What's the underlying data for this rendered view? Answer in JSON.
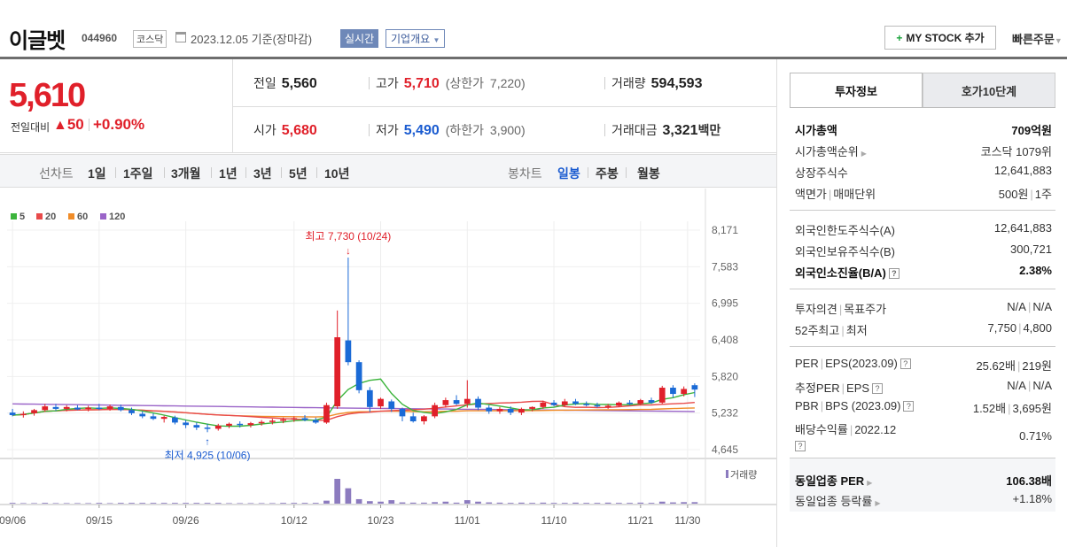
{
  "header": {
    "stock_name": "이글벳",
    "stock_code": "044960",
    "market": "코스닥",
    "date": "2023.12.05  기준(장마감)",
    "realtime_label": "실시간",
    "company_overview": "기업개요",
    "my_stock_label": "MY STOCK 추가",
    "quick_order_label": "빠른주문"
  },
  "quote": {
    "price": "5,610",
    "change_label": "전일대비",
    "change": "50",
    "change_pct": "+0.90%",
    "prev_label": "전일",
    "prev": "5,560",
    "high_label": "고가",
    "high": "5,710",
    "upper_label": "(상한가",
    "upper": "7,220)",
    "volume_label": "거래량",
    "volume": "594,593",
    "open_label": "시가",
    "open": "5,680",
    "low_label": "저가",
    "low": "5,490",
    "lower_label": "(하한가",
    "lower": "3,900)",
    "amount_label": "거래대금",
    "amount": "3,321",
    "amount_unit": "백만"
  },
  "period_bar": {
    "line_label": "선차트",
    "line_periods": [
      "1일",
      "1주일",
      "3개월",
      "1년",
      "3년",
      "5년",
      "10년"
    ],
    "candle_label": "봉차트",
    "candle_periods": [
      "일봉",
      "주봉",
      "월봉"
    ],
    "active_candle": "일봉"
  },
  "chart_data": {
    "type": "candlestick",
    "legend": [
      {
        "name": "5",
        "color": "#3cb43c"
      },
      {
        "name": "20",
        "color": "#e84a4a"
      },
      {
        "name": "60",
        "color": "#f08c28"
      },
      {
        "name": "120",
        "color": "#9a64c8"
      }
    ],
    "y_ticks": [
      "8,171",
      "7,583",
      "6,995",
      "6,408",
      "5,820",
      "5,232",
      "4,645"
    ],
    "ylim": [
      4645,
      8171
    ],
    "x_ticks": [
      "09/06",
      "09/15",
      "09/26",
      "10/12",
      "10/23",
      "11/01",
      "11/10",
      "11/21",
      "11/30"
    ],
    "max_annotation": "최고 7,730 (10/24)",
    "min_annotation": "최저 4,925 (10/06)",
    "volume_label": "거래량",
    "candles": [
      [
        5240,
        5300,
        5180,
        5200
      ],
      [
        5200,
        5260,
        5160,
        5220
      ],
      [
        5230,
        5300,
        5190,
        5280
      ],
      [
        5280,
        5380,
        5250,
        5340
      ],
      [
        5330,
        5380,
        5270,
        5300
      ],
      [
        5300,
        5360,
        5260,
        5330
      ],
      [
        5320,
        5360,
        5280,
        5290
      ],
      [
        5300,
        5350,
        5260,
        5320
      ],
      [
        5320,
        5380,
        5280,
        5300
      ],
      [
        5300,
        5370,
        5270,
        5340
      ],
      [
        5330,
        5370,
        5260,
        5280
      ],
      [
        5280,
        5320,
        5200,
        5230
      ],
      [
        5220,
        5260,
        5150,
        5180
      ],
      [
        5180,
        5230,
        5120,
        5140
      ],
      [
        5140,
        5190,
        5080,
        5170
      ],
      [
        5160,
        5190,
        5050,
        5080
      ],
      [
        5080,
        5120,
        4990,
        5040
      ],
      [
        5040,
        5080,
        4960,
        5000
      ],
      [
        5000,
        5060,
        4925,
        4980
      ],
      [
        4980,
        5060,
        4950,
        5030
      ],
      [
        5030,
        5080,
        4990,
        5060
      ],
      [
        5060,
        5100,
        5000,
        5040
      ],
      [
        5040,
        5090,
        5000,
        5070
      ],
      [
        5070,
        5120,
        5030,
        5090
      ],
      [
        5090,
        5140,
        5050,
        5110
      ],
      [
        5110,
        5160,
        5070,
        5130
      ],
      [
        5130,
        5180,
        5090,
        5150
      ],
      [
        5150,
        5200,
        5100,
        5120
      ],
      [
        5120,
        5160,
        5060,
        5080
      ],
      [
        5080,
        5400,
        5060,
        5360
      ],
      [
        5340,
        6880,
        5300,
        6450
      ],
      [
        6400,
        7730,
        6000,
        6050
      ],
      [
        6050,
        6080,
        5550,
        5600
      ],
      [
        5600,
        5650,
        5250,
        5330
      ],
      [
        5340,
        5480,
        5300,
        5460
      ],
      [
        5420,
        5450,
        5250,
        5300
      ],
      [
        5300,
        5320,
        5100,
        5180
      ],
      [
        5180,
        5240,
        5080,
        5100
      ],
      [
        5100,
        5200,
        5050,
        5180
      ],
      [
        5180,
        5400,
        5150,
        5360
      ],
      [
        5360,
        5480,
        5320,
        5440
      ],
      [
        5440,
        5520,
        5360,
        5380
      ],
      [
        5380,
        5760,
        5320,
        5460
      ],
      [
        5460,
        5500,
        5280,
        5320
      ],
      [
        5320,
        5360,
        5220,
        5260
      ],
      [
        5260,
        5330,
        5220,
        5300
      ],
      [
        5300,
        5340,
        5200,
        5240
      ],
      [
        5240,
        5320,
        5200,
        5300
      ],
      [
        5300,
        5340,
        5260,
        5330
      ],
      [
        5330,
        5430,
        5300,
        5400
      ],
      [
        5400,
        5440,
        5340,
        5360
      ],
      [
        5360,
        5460,
        5340,
        5420
      ],
      [
        5420,
        5460,
        5360,
        5380
      ],
      [
        5380,
        5420,
        5340,
        5360
      ],
      [
        5360,
        5400,
        5320,
        5340
      ],
      [
        5340,
        5380,
        5300,
        5350
      ],
      [
        5350,
        5420,
        5330,
        5400
      ],
      [
        5400,
        5440,
        5360,
        5380
      ],
      [
        5380,
        5460,
        5360,
        5440
      ],
      [
        5440,
        5480,
        5380,
        5400
      ],
      [
        5400,
        5670,
        5380,
        5640
      ],
      [
        5640,
        5680,
        5480,
        5540
      ],
      [
        5540,
        5660,
        5500,
        5620
      ],
      [
        5680,
        5710,
        5490,
        5610
      ]
    ],
    "volumes": [
      3,
      2,
      2,
      3,
      2,
      2,
      2,
      2,
      3,
      2,
      3,
      3,
      3,
      3,
      3,
      3,
      3,
      3,
      3,
      3,
      2,
      2,
      2,
      2,
      2,
      3,
      3,
      3,
      3,
      12,
      100,
      62,
      18,
      10,
      8,
      14,
      5,
      4,
      4,
      6,
      8,
      4,
      14,
      8,
      5,
      4,
      3,
      4,
      3,
      4,
      3,
      3,
      4,
      3,
      3,
      4,
      3,
      3,
      4,
      3,
      8,
      5,
      6,
      6
    ]
  },
  "invest_tabs": [
    "투자정보",
    "호가10단계"
  ],
  "invest_info": {
    "market_cap_label": "시가총액",
    "market_cap": "709억원",
    "market_rank_label": "시가총액순위",
    "market_rank": "코스닥 1079위",
    "shares_label": "상장주식수",
    "shares": "12,641,883",
    "par_label": "액면가",
    "unit_label": "매매단위",
    "par": "500원",
    "unit": "1주",
    "foreign_limit_label": "외국인한도주식수(A)",
    "foreign_limit": "12,641,883",
    "foreign_hold_label": "외국인보유주식수(B)",
    "foreign_hold": "300,721",
    "foreign_ratio_label": "외국인소진율(B/A)",
    "foreign_ratio": "2.38%",
    "opinion_label": "투자의견",
    "target_label": "목표주가",
    "opinion": "N/A",
    "target": "N/A",
    "w52_label": "52주최고",
    "w52_low_label": "최저",
    "w52_high": "7,750",
    "w52_low": "4,800",
    "per_label": "PER",
    "eps_label": "EPS(2023.09)",
    "per": "25.62배",
    "eps": "219원",
    "est_per_label": "추정PER",
    "est_eps_label": "EPS",
    "est_per": "N/A",
    "est_eps": "N/A",
    "pbr_label": "PBR",
    "bps_label": "BPS (2023.09)",
    "pbr": "1.52배",
    "bps": "3,695원",
    "div_label": "배당수익률",
    "div_year": "2022.12",
    "div": "0.71%",
    "peer_per_label": "동일업종 PER",
    "peer_per": "106.38배",
    "peer_rate_label": "동일업종 등락률",
    "peer_rate": "+1.18%"
  }
}
